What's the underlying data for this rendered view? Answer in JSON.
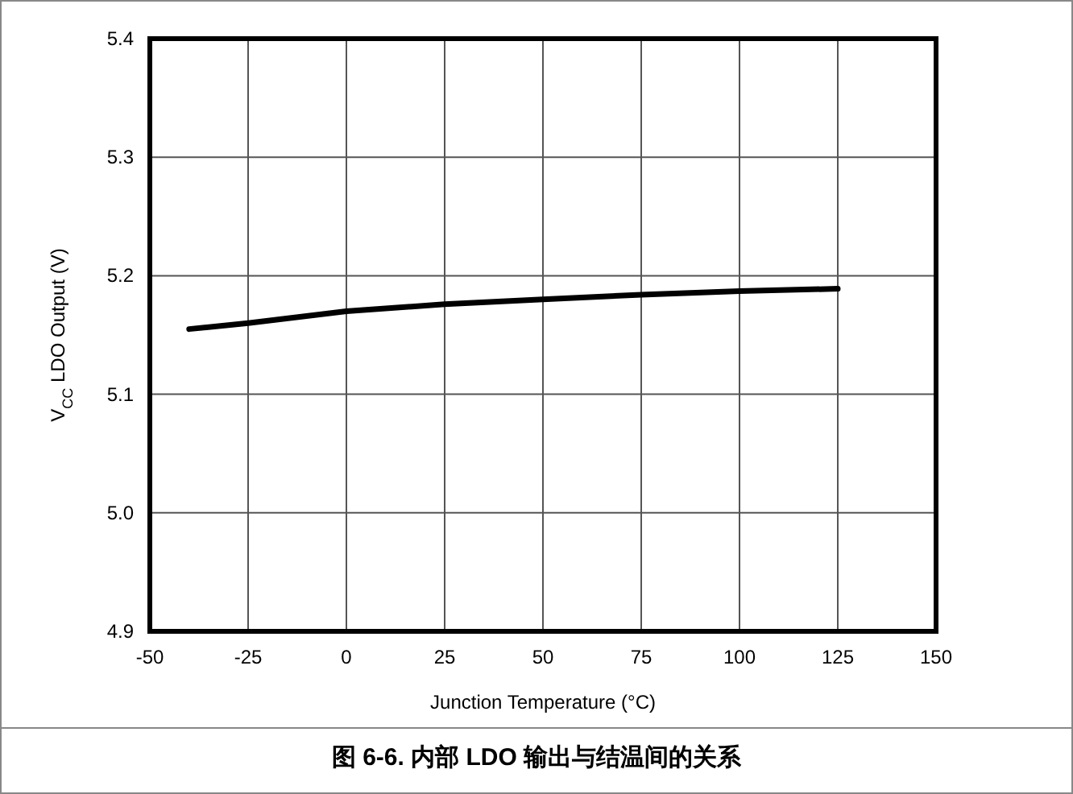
{
  "chart_data": {
    "type": "line",
    "title": "图 6-6. 内部 LDO 输出与结温间的关系",
    "xlabel": "Junction Temperature (°C)",
    "ylabel": "V$_{CC}$ LDO Output (V)",
    "series": [
      {
        "color": "#000000",
        "x": [
          -40,
          -25,
          0,
          25,
          50,
          75,
          100,
          125
        ],
        "values": [
          5.155,
          5.16,
          5.17,
          5.176,
          5.18,
          5.184,
          5.187,
          5.189
        ]
      }
    ],
    "xlim": [
      -50,
      150
    ],
    "xticks": [
      -50,
      -25,
      0,
      25,
      50,
      75,
      100,
      125,
      150
    ],
    "ylim": [
      4.9,
      5.4
    ],
    "yticks": [
      4.9,
      {
        "value": 5,
        "label": "5.0"
      },
      5.1,
      5.2,
      5.3,
      5.4
    ],
    "grid": true,
    "marker": "none",
    "line_style": "solid"
  }
}
